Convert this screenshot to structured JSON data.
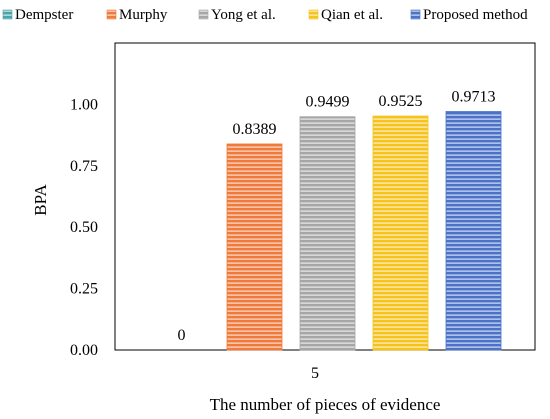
{
  "chart_data": {
    "type": "bar",
    "categories": [
      "5"
    ],
    "series": [
      {
        "name": "Dempster",
        "values": [
          0
        ],
        "color": "#4aa3a8",
        "label": "0"
      },
      {
        "name": "Murphy",
        "values": [
          0.8389
        ],
        "color": "#f07a3c",
        "label": "0.8389"
      },
      {
        "name": "Yong et al.",
        "values": [
          0.9499
        ],
        "color": "#a6a6a6",
        "label": "0.9499"
      },
      {
        "name": "Qian et al.",
        "values": [
          0.9525
        ],
        "color": "#f6c21c",
        "label": "0.9525"
      },
      {
        "name": "Proposed method",
        "values": [
          0.9713
        ],
        "color": "#4a72c8",
        "label": "0.9713"
      }
    ],
    "xlabel": "The number of pieces of evidence",
    "ylabel": "BPA",
    "ylim": [
      0,
      1.25
    ],
    "yticks": [
      "0.00",
      "0.25",
      "0.50",
      "0.75",
      "1.00"
    ],
    "ytick_values": [
      0,
      0.25,
      0.5,
      0.75,
      1.0
    ],
    "grid": false,
    "legend": "top",
    "bar_pattern": "horizontal-stripes"
  }
}
